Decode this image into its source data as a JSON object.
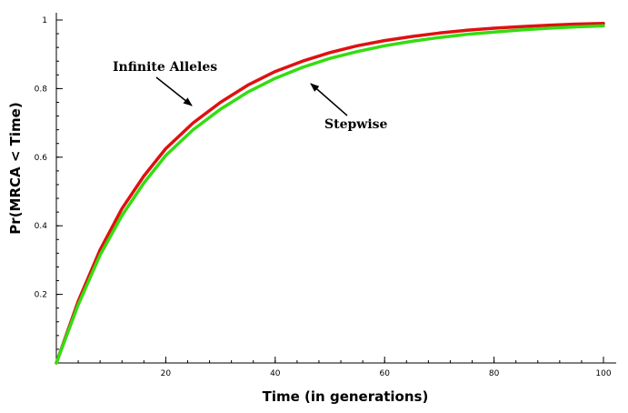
{
  "chart_data": {
    "type": "line",
    "title": "",
    "xlabel": "Time (in generations)",
    "ylabel": "Pr(MRCA < Time)",
    "xlim": [
      0,
      100
    ],
    "ylim": [
      0,
      1
    ],
    "xticks": [
      20,
      40,
      60,
      80,
      100
    ],
    "yticks": [
      0.2,
      0.4,
      0.6,
      0.8,
      1
    ],
    "xtick_labels": [
      "20",
      "40",
      "60",
      "80",
      "100"
    ],
    "ytick_labels": [
      "0.2",
      "0.4",
      "0.6",
      "0.8",
      "1"
    ],
    "grid": false,
    "series": [
      {
        "name": "Infinite Alleles",
        "color": "#e01010",
        "x": [
          0,
          4,
          8,
          12,
          16,
          20,
          25,
          30,
          35,
          40,
          45,
          50,
          55,
          60,
          65,
          70,
          75,
          80,
          85,
          90,
          95,
          100
        ],
        "y": [
          0,
          0.18,
          0.33,
          0.45,
          0.545,
          0.625,
          0.7,
          0.76,
          0.81,
          0.85,
          0.88,
          0.905,
          0.925,
          0.94,
          0.952,
          0.962,
          0.97,
          0.976,
          0.981,
          0.985,
          0.988,
          0.99
        ]
      },
      {
        "name": "Stepwise",
        "color": "#33dd11",
        "x": [
          0,
          4,
          8,
          12,
          16,
          20,
          25,
          30,
          35,
          40,
          45,
          50,
          55,
          60,
          65,
          70,
          75,
          80,
          85,
          90,
          95,
          100
        ],
        "y": [
          0,
          0.17,
          0.315,
          0.43,
          0.525,
          0.605,
          0.68,
          0.74,
          0.79,
          0.83,
          0.862,
          0.888,
          0.908,
          0.925,
          0.938,
          0.949,
          0.958,
          0.965,
          0.971,
          0.976,
          0.98,
          0.983
        ]
      }
    ],
    "annotations": [
      {
        "text": "Infinite Alleles",
        "points_to": "Infinite Alleles"
      },
      {
        "text": "Stepwise",
        "points_to": "Stepwise"
      }
    ]
  }
}
